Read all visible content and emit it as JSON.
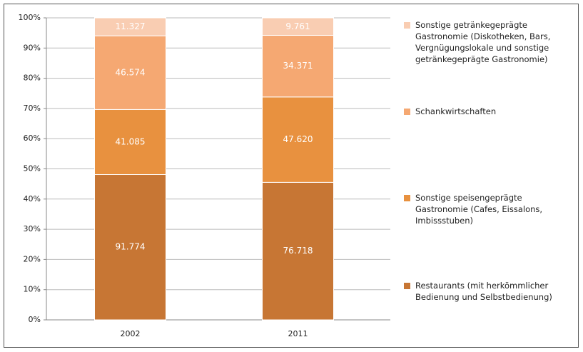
{
  "chart_data": {
    "type": "bar",
    "stacking": "percent",
    "categories": [
      "2002",
      "2011"
    ],
    "series": [
      {
        "name": "Restaurants (mit herkömmlicher Bedienung und Selbstbedienung)",
        "color": "#c77634",
        "values": [
          91774,
          76718
        ],
        "value_labels": [
          "91.774",
          "76.718"
        ]
      },
      {
        "name": "Sonstige speisengeprägte Gastronomie (Cafes, Eissalons, Imbissstuben)",
        "color": "#e8913f",
        "values": [
          41085,
          47620
        ],
        "value_labels": [
          "41.085",
          "47.620"
        ]
      },
      {
        "name": "Schankwirtschaften",
        "color": "#f5a872",
        "values": [
          46574,
          34371
        ],
        "value_labels": [
          "46.574",
          "34.371"
        ]
      },
      {
        "name": "Sonstige getränkegeprägte Gastronomie (Diskotheken, Bars, Vergnügungslokale und sonstige getränkegeprägte Gastronomie)",
        "color": "#f9cdb2",
        "values": [
          11327,
          9761
        ],
        "value_labels": [
          "11.327",
          "9.761"
        ]
      }
    ],
    "ylim": [
      0,
      100
    ],
    "yticks": [
      {
        "value": 0,
        "label": "0%"
      },
      {
        "value": 10,
        "label": "10%"
      },
      {
        "value": 20,
        "label": "20%"
      },
      {
        "value": 30,
        "label": "30%"
      },
      {
        "value": 40,
        "label": "40%"
      },
      {
        "value": 50,
        "label": "50%"
      },
      {
        "value": 60,
        "label": "60%"
      },
      {
        "value": 70,
        "label": "70%"
      },
      {
        "value": 80,
        "label": "80%"
      },
      {
        "value": 90,
        "label": "90%"
      },
      {
        "value": 100,
        "label": "100%"
      }
    ],
    "grid": true
  }
}
